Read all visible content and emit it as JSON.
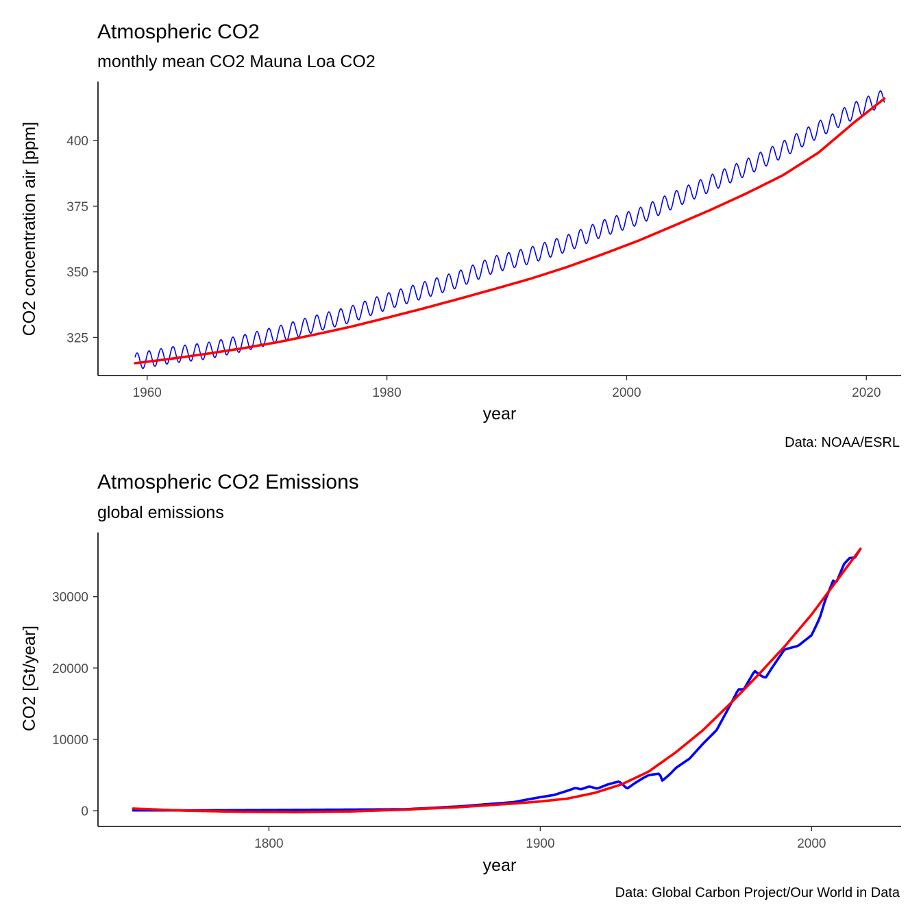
{
  "chart_data": [
    {
      "type": "line",
      "title": "Atmospheric CO2",
      "subtitle": "monthly mean CO2 Mauna Loa CO2",
      "xlabel": "year",
      "ylabel": "CO2 concentration air [ppm]",
      "caption": "Data: NOAA/ESRL",
      "xlim": [
        1955.9,
        2022.9
      ],
      "ylim": [
        310.5,
        422.5
      ],
      "xticks": [
        1960,
        1980,
        2000,
        2020
      ],
      "yticks": [
        325,
        350,
        375,
        400
      ],
      "grid": false,
      "legend": "none",
      "series": [
        {
          "color": "#0000ff",
          "style": "thin monthly line with seasonal cycle",
          "seasonal_amplitude": 3.2,
          "x": [
            1959,
            1962,
            1965,
            1968,
            1971,
            1974,
            1977,
            1980,
            1983,
            1986,
            1989,
            1992,
            1995,
            1998,
            2001,
            2004,
            2007,
            2010,
            2013,
            2016,
            2019,
            2021.5
          ],
          "y": [
            315.8,
            318.3,
            319.9,
            322.8,
            326.3,
            330.2,
            333.8,
            338.7,
            342.9,
            347.2,
            352.9,
            356.3,
            360.8,
            366.5,
            371.1,
            377.5,
            383.7,
            389.8,
            396.5,
            404.2,
            411.4,
            416.5
          ]
        },
        {
          "color": "#ff0000",
          "style": "smoothed trend",
          "x": [
            1959,
            1962,
            1965,
            1968,
            1971,
            1974,
            1977,
            1980,
            1983,
            1986,
            1989,
            1992,
            1995,
            1998,
            2001,
            2004,
            2007,
            2010,
            2013,
            2016,
            2019,
            2021.5
          ],
          "y": [
            315.2,
            316.9,
            318.8,
            320.9,
            323.3,
            326.1,
            329.1,
            332.5,
            336.0,
            339.7,
            343.5,
            347.4,
            351.8,
            356.7,
            361.9,
            367.7,
            373.6,
            379.9,
            386.7,
            395.4,
            407.0,
            416.0
          ]
        }
      ]
    },
    {
      "type": "line",
      "title": "Atmospheric CO2 Emissions",
      "subtitle": "global emissions",
      "xlabel": "year",
      "ylabel": "CO2 [Gt/year]",
      "caption": "Data: Global Carbon Project/Our World in Data",
      "xlim": [
        1737,
        2033
      ],
      "ylim": [
        -2200,
        39000
      ],
      "xticks": [
        1800,
        1900,
        2000
      ],
      "yticks": [
        0,
        10000,
        20000,
        30000
      ],
      "grid": false,
      "legend": "none",
      "series": [
        {
          "color": "#0000ff",
          "style": "annual emissions",
          "x": [
            1750,
            1775,
            1800,
            1825,
            1850,
            1870,
            1880,
            1890,
            1900,
            1905,
            1910,
            1913,
            1915,
            1918,
            1921,
            1925,
            1929,
            1930,
            1932,
            1935,
            1938,
            1940,
            1944,
            1945,
            1948,
            1950,
            1955,
            1960,
            1965,
            1970,
            1973,
            1975,
            1979,
            1981,
            1983,
            1985,
            1990,
            1995,
            1998,
            2000,
            2003,
            2005,
            2008,
            2009,
            2012,
            2014,
            2016,
            2018
          ],
          "y": [
            50,
            50,
            100,
            150,
            200,
            600,
            900,
            1200,
            1900,
            2200,
            2800,
            3200,
            3000,
            3400,
            3100,
            3700,
            4100,
            3800,
            3100,
            3900,
            4600,
            5000,
            5200,
            4200,
            5200,
            6000,
            7300,
            9400,
            11300,
            14800,
            17000,
            17000,
            19600,
            19000,
            18600,
            19800,
            22600,
            23100,
            24000,
            24600,
            27000,
            29500,
            32300,
            31900,
            34600,
            35400,
            35500,
            36700
          ]
        },
        {
          "color": "#ff0000",
          "style": "smoothed trend",
          "x": [
            1750,
            1770,
            1790,
            1810,
            1830,
            1850,
            1870,
            1890,
            1900,
            1910,
            1920,
            1930,
            1940,
            1950,
            1960,
            1970,
            1980,
            1990,
            2000,
            2010,
            2018
          ],
          "y": [
            300,
            0,
            -150,
            -200,
            -100,
            150,
            500,
            1000,
            1300,
            1700,
            2500,
            3700,
            5500,
            8200,
            11300,
            15000,
            18900,
            23000,
            27500,
            32600,
            36700
          ]
        }
      ]
    }
  ]
}
